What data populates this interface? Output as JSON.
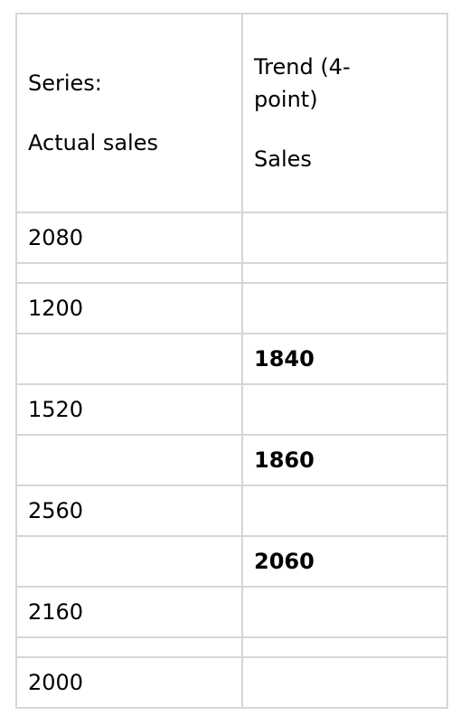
{
  "header": {
    "col1_line1": "Series:",
    "col1_line2": "Actual sales",
    "col2_line1": "Trend (4-",
    "col2_line2": "point)",
    "col2_line3": "Sales"
  },
  "rows": [
    {
      "actual": "2080",
      "trend": ""
    },
    {
      "actual": "",
      "trend": ""
    },
    {
      "actual": "1200",
      "trend": ""
    },
    {
      "actual": "",
      "trend": "1840"
    },
    {
      "actual": "1520",
      "trend": ""
    },
    {
      "actual": "",
      "trend": "1860"
    },
    {
      "actual": "2560",
      "trend": ""
    },
    {
      "actual": "",
      "trend": "2060"
    },
    {
      "actual": "2160",
      "trend": ""
    },
    {
      "actual": "",
      "trend": ""
    },
    {
      "actual": "2000",
      "trend": ""
    }
  ]
}
